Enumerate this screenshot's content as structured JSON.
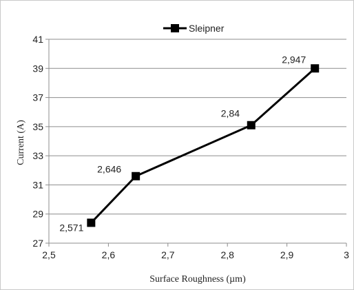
{
  "chart_data": {
    "type": "line",
    "xlabel": "Surface Roughness (µm)",
    "ylabel": "Current  (A)",
    "xlim": [
      2.5,
      3.0
    ],
    "ylim": [
      27,
      41
    ],
    "x_ticks": [
      "2,5",
      "2,6",
      "2,7",
      "2,8",
      "2,9",
      "3"
    ],
    "y_ticks": [
      "27",
      "29",
      "31",
      "33",
      "35",
      "37",
      "39",
      "41"
    ],
    "grid": "horizontal",
    "legend_position": "top",
    "series": [
      {
        "name": "Sleipner",
        "color": "#000000",
        "marker": "square",
        "points": [
          {
            "x": 2.571,
            "y": 28.4,
            "label": "2,571"
          },
          {
            "x": 2.646,
            "y": 31.6,
            "label": "2,646"
          },
          {
            "x": 2.84,
            "y": 35.1,
            "label": "2,84"
          },
          {
            "x": 2.947,
            "y": 39.0,
            "label": "2,947"
          }
        ]
      }
    ]
  }
}
